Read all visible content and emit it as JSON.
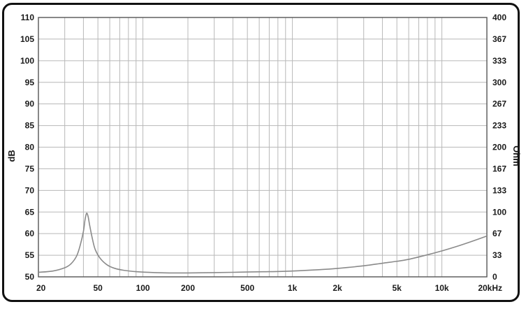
{
  "chart_data": {
    "type": "line",
    "title": "",
    "xlabel": "",
    "ylabel": "dB",
    "y2label": "Ohm",
    "x_scale": "log",
    "xlim": [
      20,
      20000
    ],
    "ylim": [
      50,
      110
    ],
    "y2lim": [
      0,
      400
    ],
    "grid": true,
    "x_ticks": [
      {
        "value": 20,
        "label": "20"
      },
      {
        "value": 50,
        "label": "50"
      },
      {
        "value": 100,
        "label": "100"
      },
      {
        "value": 200,
        "label": "200"
      },
      {
        "value": 500,
        "label": "500"
      },
      {
        "value": 1000,
        "label": "1k"
      },
      {
        "value": 2000,
        "label": "2k"
      },
      {
        "value": 5000,
        "label": "5k"
      },
      {
        "value": 10000,
        "label": "10k"
      },
      {
        "value": 20000,
        "label": "20kHz"
      }
    ],
    "y_ticks": [
      "50",
      "55",
      "60",
      "65",
      "70",
      "75",
      "80",
      "85",
      "90",
      "95",
      "100",
      "105",
      "110"
    ],
    "y2_ticks": [
      "0",
      "33",
      "67",
      "100",
      "133",
      "167",
      "200",
      "233",
      "267",
      "300",
      "333",
      "367",
      "400"
    ],
    "series": [
      {
        "color": "#8a8a8a",
        "axis": "y2",
        "points": [
          [
            20,
            7
          ],
          [
            25,
            9
          ],
          [
            30,
            14
          ],
          [
            33,
            20
          ],
          [
            36,
            32
          ],
          [
            38,
            48
          ],
          [
            40,
            70
          ],
          [
            41,
            88
          ],
          [
            42,
            98
          ],
          [
            43,
            93
          ],
          [
            44,
            80
          ],
          [
            46,
            58
          ],
          [
            48,
            42
          ],
          [
            52,
            28
          ],
          [
            58,
            18
          ],
          [
            65,
            13
          ],
          [
            75,
            10
          ],
          [
            90,
            8
          ],
          [
            120,
            6.5
          ],
          [
            150,
            6
          ],
          [
            200,
            6
          ],
          [
            300,
            6.5
          ],
          [
            400,
            7
          ],
          [
            500,
            7.5
          ],
          [
            700,
            8
          ],
          [
            1000,
            9
          ],
          [
            1500,
            11
          ],
          [
            2000,
            13
          ],
          [
            3000,
            17
          ],
          [
            4000,
            21
          ],
          [
            5000,
            24
          ],
          [
            6000,
            27
          ],
          [
            8000,
            34
          ],
          [
            10000,
            40
          ],
          [
            13000,
            48
          ],
          [
            16000,
            55
          ],
          [
            20000,
            63
          ]
        ]
      }
    ],
    "colors": {
      "grid": "#b8b8b8",
      "frame": "#111111",
      "trace": "#8a8a8a"
    }
  }
}
